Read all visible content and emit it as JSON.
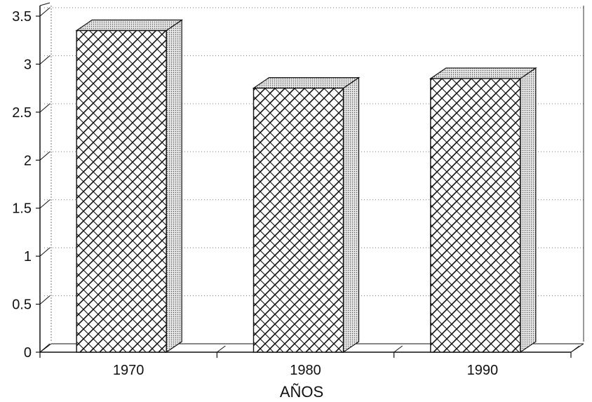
{
  "chart_data": {
    "type": "bar",
    "title": "",
    "xlabel": "AÑOS",
    "ylabel": "",
    "categories": [
      "1970",
      "1980",
      "1990"
    ],
    "values": [
      3.35,
      2.75,
      2.85
    ],
    "ylim": [
      0,
      3.5
    ],
    "yticks": [
      "0",
      "0.5",
      "1",
      "1.5",
      "2",
      "2.5",
      "3",
      "3.5"
    ],
    "grid": true,
    "bar_style": "3d-crosshatch",
    "colors": {
      "face": "#ffffff",
      "hatch": "#111111",
      "side": "#bdbdbd",
      "grid": "#777777"
    }
  }
}
